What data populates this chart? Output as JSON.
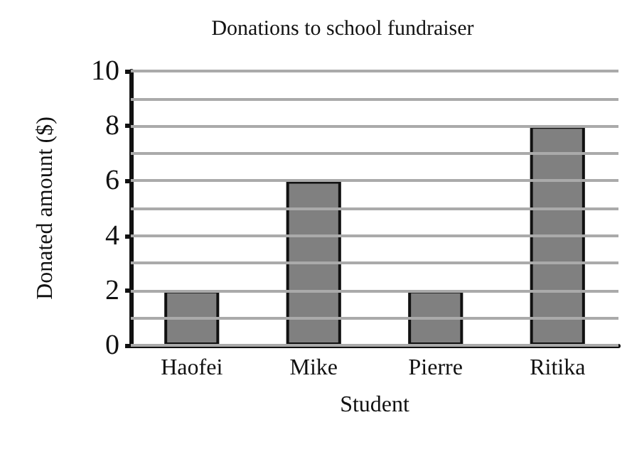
{
  "chart_data": {
    "type": "bar",
    "title": "Donations to school fundraiser",
    "xlabel": "Student",
    "ylabel": "Donated amount ($)",
    "categories": [
      "Haofei",
      "Mike",
      "Pierre",
      "Ritika"
    ],
    "values": [
      2,
      6,
      2,
      8
    ],
    "color": "#808080",
    "ylim": [
      0,
      10
    ],
    "yticks": [
      0,
      {
        "value": 1,
        "label": null
      },
      2,
      {
        "value": 3,
        "label": null
      },
      4,
      {
        "value": 5,
        "label": null
      },
      6,
      {
        "value": 7,
        "label": null
      },
      8,
      {
        "value": 9,
        "label": null
      },
      10
    ],
    "grid": "y"
  }
}
